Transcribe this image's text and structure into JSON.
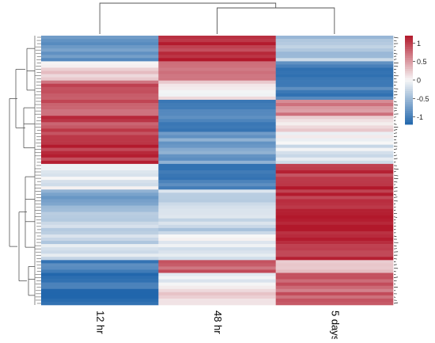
{
  "chart_data": {
    "type": "heatmap",
    "columns": [
      "12 hr",
      "48 hr",
      "5 days"
    ],
    "color_scale": {
      "min": -1.2,
      "max": 1.2,
      "ticks": [
        "1",
        "0.5",
        "0",
        "-0.5",
        "-1"
      ],
      "tick_values": [
        1,
        0.5,
        0,
        -0.5,
        -1
      ],
      "low_color": "#2166ac",
      "mid_color": "#f7f7f7",
      "high_color": "#b2182b"
    },
    "row_blocks": [
      {
        "rows": 8,
        "values": [
          -0.75,
          1.05,
          -0.4
        ]
      },
      {
        "rows": 6,
        "values": [
          0.15,
          0.75,
          -1.0
        ]
      },
      {
        "rows": 6,
        "values": [
          0.85,
          0.1,
          -0.95
        ]
      },
      {
        "rows": 5,
        "values": [
          0.8,
          -1.0,
          0.6
        ]
      },
      {
        "rows": 5,
        "values": [
          0.95,
          -1.0,
          0.1
        ]
      },
      {
        "rows": 10,
        "values": [
          1.05,
          -0.7,
          -0.1
        ]
      },
      {
        "rows": 8,
        "values": [
          -0.05,
          -0.95,
          1.05
        ]
      },
      {
        "rows": 6,
        "values": [
          -0.65,
          -0.2,
          1.05
        ]
      },
      {
        "rows": 8,
        "values": [
          -0.35,
          -0.3,
          1.1
        ]
      },
      {
        "rows": 8,
        "values": [
          -0.25,
          -0.1,
          1.1
        ]
      },
      {
        "rows": 4,
        "values": [
          -1.0,
          0.8,
          0.3
        ]
      },
      {
        "rows": 4,
        "values": [
          -1.05,
          0.0,
          0.9
        ]
      },
      {
        "rows": 6,
        "values": [
          -1.1,
          0.2,
          0.8
        ]
      }
    ],
    "grid": false,
    "legend_position": "right",
    "column_dendrogram": true,
    "row_dendrogram": true
  }
}
